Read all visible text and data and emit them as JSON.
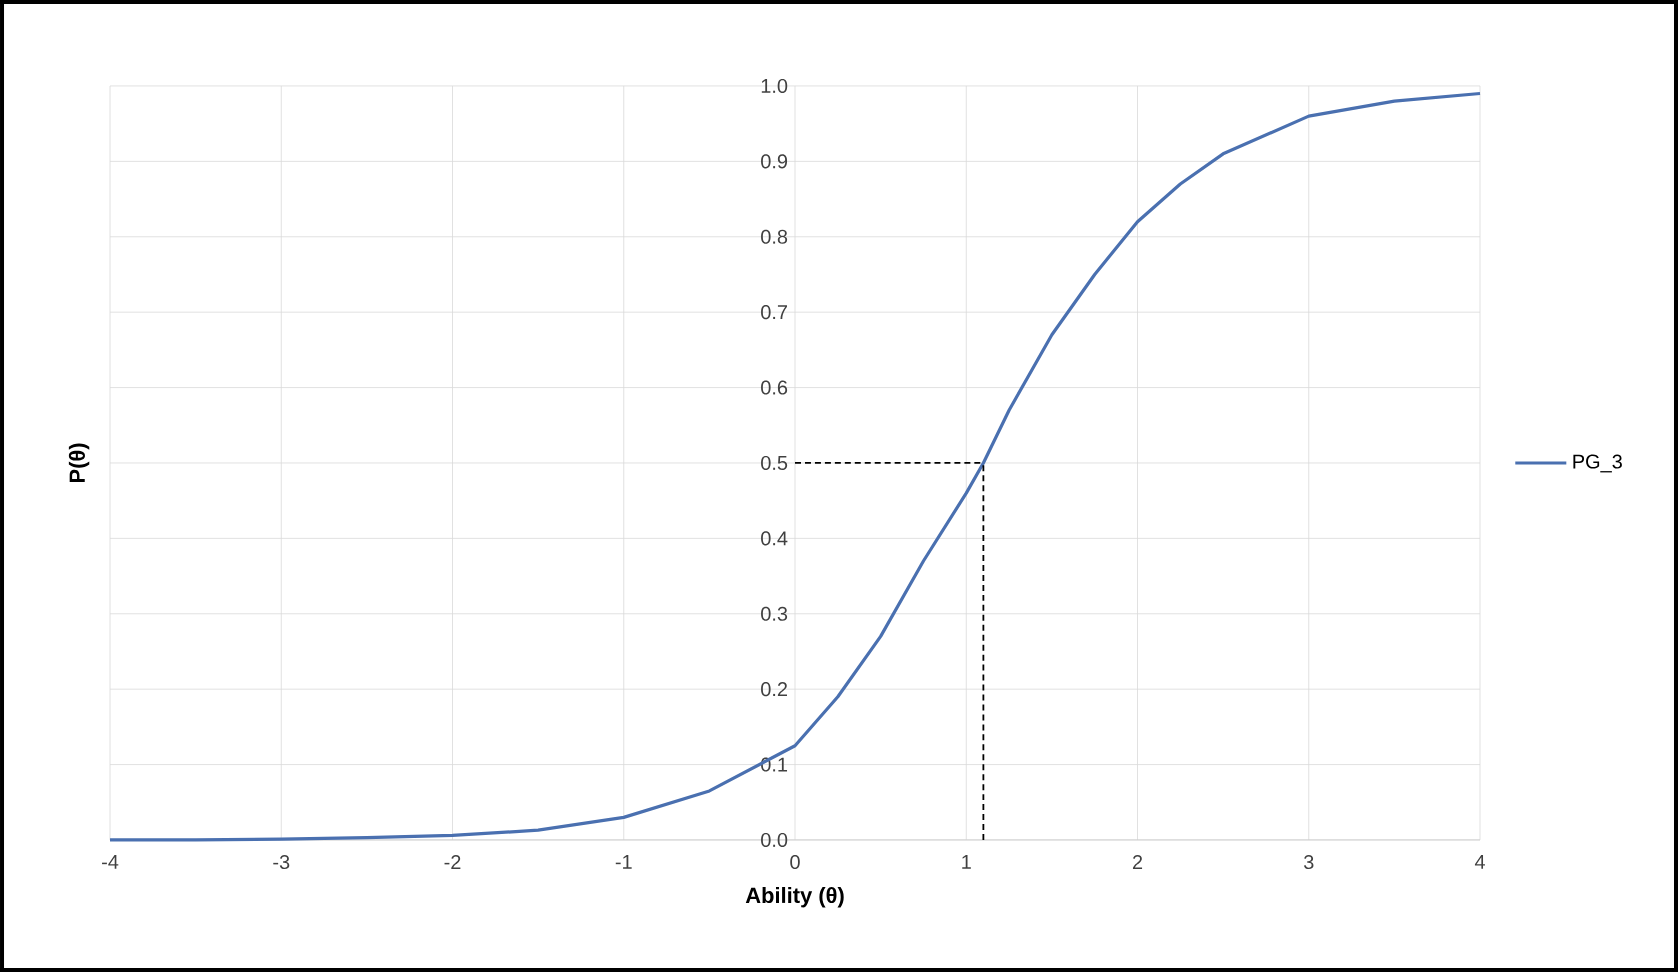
{
  "chart_data": {
    "type": "line",
    "xlabel": "Ability (θ)",
    "ylabel": "P(θ)",
    "x": [
      -4,
      -3.5,
      -3,
      -2.5,
      -2,
      -1.5,
      -1,
      -0.5,
      0,
      0.25,
      0.5,
      0.75,
      1,
      1.1,
      1.25,
      1.5,
      1.75,
      2,
      2.25,
      2.5,
      3,
      3.5,
      4
    ],
    "series": [
      {
        "name": "PG_3",
        "color": "#4a70b0",
        "line_style": "solid",
        "values": [
          0.0,
          0.0,
          0.001,
          0.003,
          0.006,
          0.013,
          0.03,
          0.065,
          0.125,
          0.19,
          0.27,
          0.37,
          0.46,
          0.5,
          0.57,
          0.67,
          0.75,
          0.82,
          0.87,
          0.91,
          0.96,
          0.98,
          0.99
        ]
      }
    ],
    "ref_lines": [
      {
        "axis": "y",
        "value": 0.5,
        "color": "#000000",
        "line_style": "dashed"
      },
      {
        "axis": "x",
        "value": 1.1,
        "color": "#000000",
        "line_style": "dashed"
      }
    ],
    "xlim": [
      -4,
      4
    ],
    "xticks": [
      -4,
      -3,
      -2,
      -1,
      0,
      1,
      2,
      3,
      4
    ],
    "ylim": [
      0,
      1
    ],
    "yticks": [
      {
        "value": 0,
        "label": "0.0"
      },
      0.1,
      0.2,
      0.3,
      0.4,
      0.5,
      0.6,
      0.7,
      0.8,
      0.9,
      {
        "value": 1,
        "label": "1.0"
      }
    ],
    "grid": true,
    "legend": "right",
    "marker": "none"
  }
}
